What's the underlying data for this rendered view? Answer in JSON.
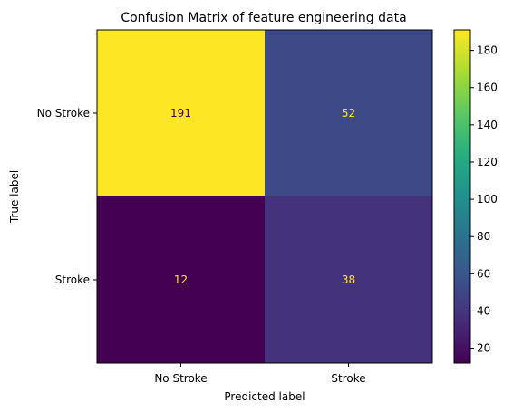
{
  "chart_data": {
    "type": "heatmap",
    "title": "Confusion Matrix of feature engineering data",
    "xlabel": "Predicted label",
    "ylabel": "True label",
    "x_categories": [
      "No Stroke",
      "Stroke"
    ],
    "y_categories": [
      "No Stroke",
      "Stroke"
    ],
    "values": [
      [
        191,
        52
      ],
      [
        12,
        38
      ]
    ],
    "colormap": "viridis",
    "colorbar": {
      "range": [
        12,
        191
      ],
      "ticks": [
        20,
        40,
        60,
        80,
        100,
        120,
        140,
        160,
        180
      ]
    },
    "text_colors": {
      "dark_cell": "#fde725",
      "light_cell": "#440154"
    }
  }
}
